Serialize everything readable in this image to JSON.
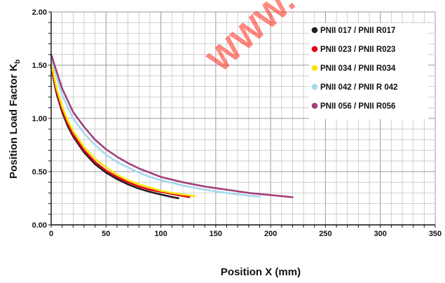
{
  "chart_data": {
    "type": "line",
    "xlabel": "Position X (mm)",
    "ylabel": "Position Load Factor K",
    "ylabel_subscript": "b",
    "xlim": [
      0,
      350
    ],
    "ylim": [
      0,
      2.0
    ],
    "x_ticks": [
      "0",
      "50",
      "100",
      "150",
      "200",
      "250",
      "300",
      "350"
    ],
    "y_ticks": [
      "0.00",
      "0.50",
      "1.00",
      "1.50",
      "2.00"
    ],
    "grid": true,
    "legend_position": "top-right",
    "watermark": "WWW.",
    "series": [
      {
        "name": "PNII 017 / PNII R017",
        "color": "#231f20",
        "x": [
          0,
          5,
          10,
          15,
          20,
          30,
          40,
          50,
          60,
          70,
          80,
          90,
          100,
          110,
          116
        ],
        "y": [
          1.48,
          1.23,
          1.06,
          0.93,
          0.83,
          0.68,
          0.57,
          0.49,
          0.43,
          0.38,
          0.34,
          0.31,
          0.285,
          0.262,
          0.25
        ]
      },
      {
        "name": "PNII 023 / PNII R023",
        "color": "#e4001b",
        "x": [
          0,
          5,
          10,
          15,
          20,
          30,
          40,
          50,
          60,
          70,
          80,
          90,
          100,
          110,
          120,
          126
        ],
        "y": [
          1.5,
          1.25,
          1.08,
          0.95,
          0.85,
          0.7,
          0.59,
          0.51,
          0.45,
          0.4,
          0.36,
          0.33,
          0.31,
          0.29,
          0.272,
          0.26
        ]
      },
      {
        "name": "PNII 034 / PNII R034",
        "color": "#f7e500",
        "x": [
          0,
          5,
          10,
          15,
          20,
          30,
          40,
          50,
          60,
          70,
          80,
          90,
          100,
          110,
          120,
          131
        ],
        "y": [
          1.52,
          1.28,
          1.11,
          0.98,
          0.88,
          0.73,
          0.62,
          0.54,
          0.47,
          0.42,
          0.38,
          0.35,
          0.32,
          0.3,
          0.285,
          0.27
        ]
      },
      {
        "name": "PNII 042 / PNII R 042",
        "color": "#a7d8ee",
        "x": [
          0,
          10,
          20,
          30,
          40,
          50,
          60,
          70,
          80,
          90,
          100,
          120,
          140,
          160,
          180,
          190
        ],
        "y": [
          1.56,
          1.22,
          1.0,
          0.86,
          0.75,
          0.66,
          0.59,
          0.54,
          0.49,
          0.45,
          0.42,
          0.37,
          0.33,
          0.3,
          0.275,
          0.265
        ]
      },
      {
        "name": "PNII 056 / PNII R056",
        "color": "#a1407c",
        "x": [
          0,
          10,
          20,
          30,
          40,
          50,
          60,
          70,
          80,
          90,
          100,
          120,
          140,
          160,
          180,
          200,
          220
        ],
        "y": [
          1.6,
          1.28,
          1.06,
          0.92,
          0.8,
          0.71,
          0.64,
          0.58,
          0.53,
          0.49,
          0.45,
          0.4,
          0.36,
          0.33,
          0.3,
          0.28,
          0.26
        ]
      }
    ]
  }
}
